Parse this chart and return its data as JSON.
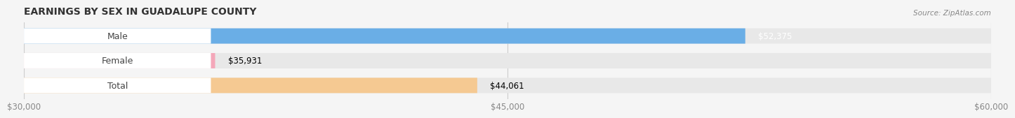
{
  "title": "EARNINGS BY SEX IN GUADALUPE COUNTY",
  "source": "Source: ZipAtlas.com",
  "categories": [
    "Male",
    "Female",
    "Total"
  ],
  "values": [
    52375,
    35931,
    44061
  ],
  "bar_colors": [
    "#6aaee6",
    "#f4a7b9",
    "#f5c992"
  ],
  "bar_bg_color": "#e8e8e8",
  "label_bg_color": "#ffffff",
  "value_labels": [
    "$52,375",
    "$35,931",
    "$44,061"
  ],
  "value_colors": [
    "white",
    "black",
    "black"
  ],
  "xmin": 30000,
  "xmax": 60000,
  "xticks": [
    30000,
    45000,
    60000
  ],
  "xtick_labels": [
    "$30,000",
    "$45,000",
    "$60,000"
  ],
  "title_fontsize": 10,
  "tick_fontsize": 8.5,
  "bar_label_fontsize": 9,
  "value_fontsize": 8.5,
  "background_color": "#f5f5f5"
}
